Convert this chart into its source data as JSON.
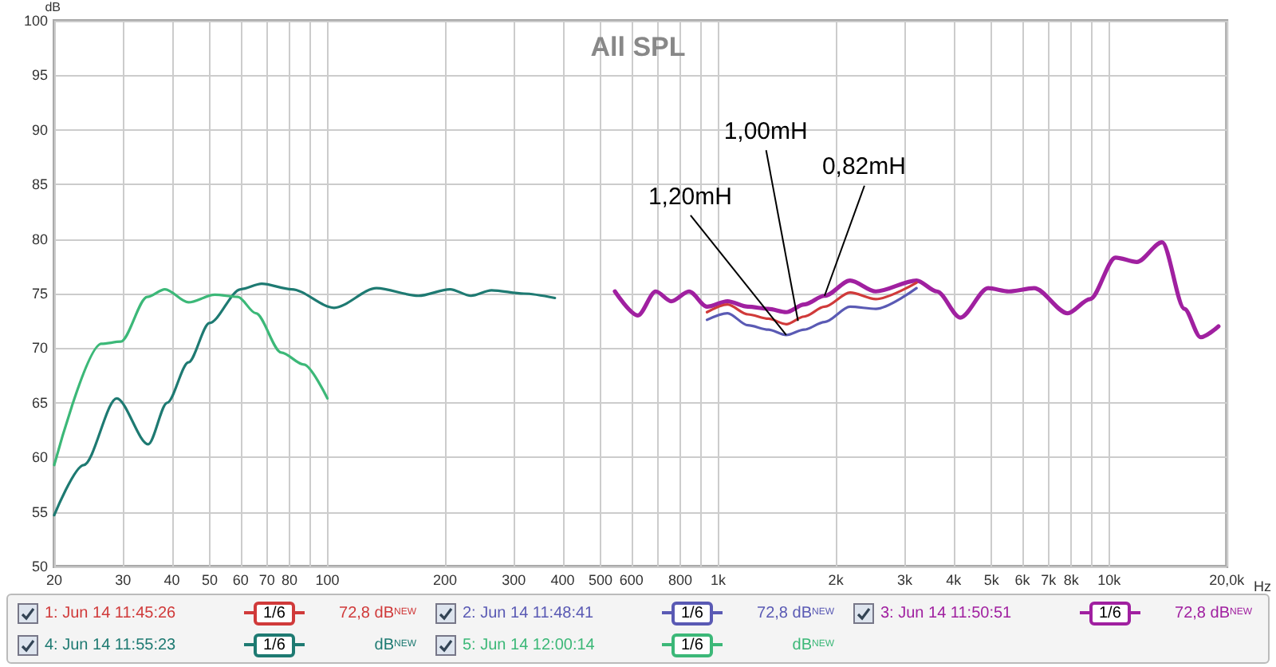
{
  "chart_data": {
    "type": "line",
    "title": "All SPL",
    "ylabel": "dB",
    "xlabel": "Hz",
    "xlim": [
      20,
      20000
    ],
    "ylim": [
      50,
      100
    ],
    "xticks": [
      20,
      30,
      40,
      50,
      60,
      70,
      80,
      {
        "value": 90,
        "label": null
      },
      100,
      200,
      300,
      400,
      500,
      600,
      {
        "value": 700,
        "label": null
      },
      800,
      {
        "value": 900,
        "label": null
      },
      {
        "value": 1000,
        "label": "1k"
      },
      {
        "value": 2000,
        "label": "2k"
      },
      {
        "value": 3000,
        "label": "3k"
      },
      {
        "value": 4000,
        "label": "4k"
      },
      {
        "value": 5000,
        "label": "5k"
      },
      {
        "value": 6000,
        "label": "6k"
      },
      {
        "value": 7000,
        "label": "7k"
      },
      {
        "value": 8000,
        "label": "8k"
      },
      {
        "value": 9000,
        "label": null
      },
      {
        "value": 10000,
        "label": "10k"
      },
      {
        "value": 20000,
        "label": "20,0k"
      }
    ],
    "yticks": [
      50,
      55,
      60,
      65,
      70,
      75,
      80,
      85,
      90,
      95,
      100
    ],
    "log": "x",
    "grid": true,
    "legend": "bottom",
    "marker": "none",
    "line_style": "solid",
    "series": [
      {
        "name": "1: Jun 14 11:45:26",
        "color": "#d03a3a",
        "x": [
          936,
          1056,
          1191,
          1343,
          1493,
          1659,
          1871,
          2175,
          2530,
          3216
        ],
        "values": [
          73.3,
          74.0,
          73.1,
          72.7,
          72.2,
          72.9,
          73.8,
          75.1,
          74.5,
          76.0
        ]
      },
      {
        "name": "2: Jun 14 11:48:41",
        "color": "#5a5ab4",
        "x": [
          936,
          1056,
          1191,
          1343,
          1493,
          1659,
          1871,
          2175,
          2530,
          3216
        ],
        "values": [
          72.6,
          73.2,
          72.1,
          71.7,
          71.2,
          71.7,
          72.4,
          73.8,
          73.6,
          75.5
        ]
      },
      {
        "name": "3: Jun 14 11:50:51",
        "color": "#a020a0",
        "x": [
          544,
          623,
          692,
          758,
          842,
          936,
          1056,
          1191,
          1343,
          1493,
          1659,
          1871,
          2175,
          2530,
          3216,
          3628,
          4162,
          4905,
          5540,
          6430,
          7834,
          8945,
          10390,
          11780,
          13670,
          15590,
          17150,
          19050
        ],
        "values": [
          75.2,
          73.0,
          75.2,
          74.3,
          75.2,
          73.8,
          74.3,
          73.8,
          73.6,
          73.3,
          74.0,
          74.8,
          76.2,
          75.2,
          76.2,
          75.2,
          72.8,
          75.5,
          75.2,
          75.5,
          73.2,
          74.5,
          78.3,
          77.9,
          79.7,
          73.6,
          71.0,
          72.0
        ]
      },
      {
        "name": "4: Jun 14 11:55:23",
        "color": "#1e7a72",
        "x": [
          20,
          23.8,
          28.9,
          34.8,
          38.9,
          44.1,
          49.9,
          60,
          67.9,
          81,
          104,
          133.5,
          171,
          206,
          233,
          263,
          318,
          382
        ],
        "values": [
          54.7,
          59.3,
          65.4,
          61.2,
          65.0,
          68.7,
          72.3,
          75.4,
          75.9,
          75.4,
          73.7,
          75.5,
          74.8,
          75.4,
          74.8,
          75.3,
          75.0,
          74.6
        ]
      },
      {
        "name": "5: Jun 14 12:00:14",
        "color": "#3cb878",
        "x": [
          20,
          26.4,
          29.6,
          34.6,
          38.4,
          44.1,
          51.5,
          59,
          65.6,
          76.2,
          87,
          100
        ],
        "values": [
          59.3,
          70.4,
          70.6,
          74.7,
          75.4,
          74.2,
          74.9,
          74.7,
          73.2,
          69.6,
          68.5,
          65.4
        ]
      }
    ],
    "annotations": [
      {
        "text": "1,20mH",
        "x": 1493,
        "y": 71.2
      },
      {
        "text": "1,00mH",
        "x": 1600,
        "y": 72.5
      },
      {
        "text": "0,82mH",
        "x": 1871,
        "y": 74.8
      },
      "1/6",
      "72,8 dB$^{NEW}$",
      "1/6",
      "72,8 dB$^{NEW}$",
      "1/6",
      "72,8 dB$^{NEW}$",
      "1/6",
      "dB$^{NEW}$",
      "1/6",
      "dB$^{NEW}$"
    ]
  }
}
